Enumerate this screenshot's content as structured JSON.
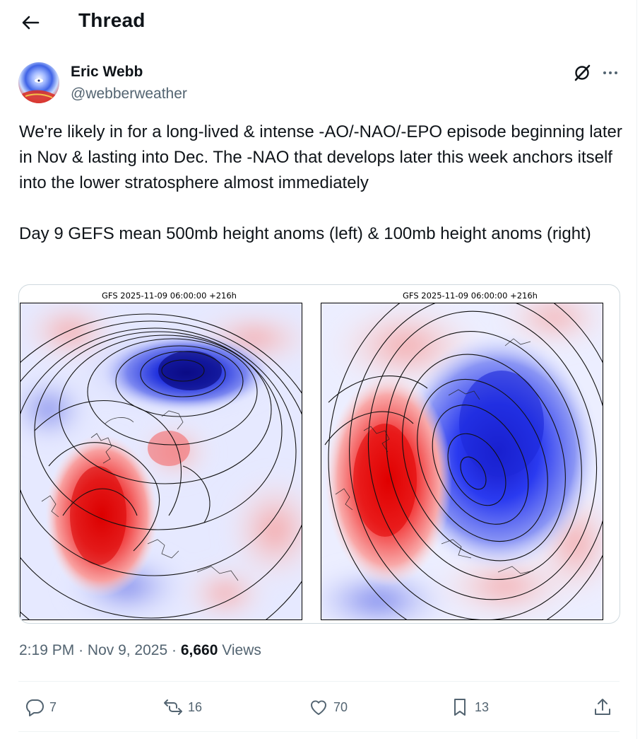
{
  "header": {
    "title": "Thread"
  },
  "tweet": {
    "author": {
      "name": "Eric Webb",
      "handle": "@webberweather"
    },
    "text": [
      "We're likely in for a long-lived & intense -AO/-NAO/-EPO episode beginning later in Nov & lasting into Dec. The -NAO that develops later this week anchors itself into the lower stratosphere almost immediately",
      "Day 9 GEFS mean 500mb height anoms (left) & 100mb height anoms (right)"
    ],
    "media": {
      "left_title": "GFS 2025-11-09 06:00:00 +216h",
      "right_title": "GFS 2025-11-09 06:00:00 +216h"
    },
    "time": "2:19 PM",
    "date": "Nov 9, 2025",
    "views_count": "6,660",
    "views_label": "Views",
    "sep": "·",
    "actions": {
      "replies": "7",
      "reposts": "16",
      "likes": "70",
      "bookmarks": "13"
    }
  },
  "colors": {
    "text": "#0f1419",
    "muted": "#536471",
    "border": "#cfd9de"
  }
}
